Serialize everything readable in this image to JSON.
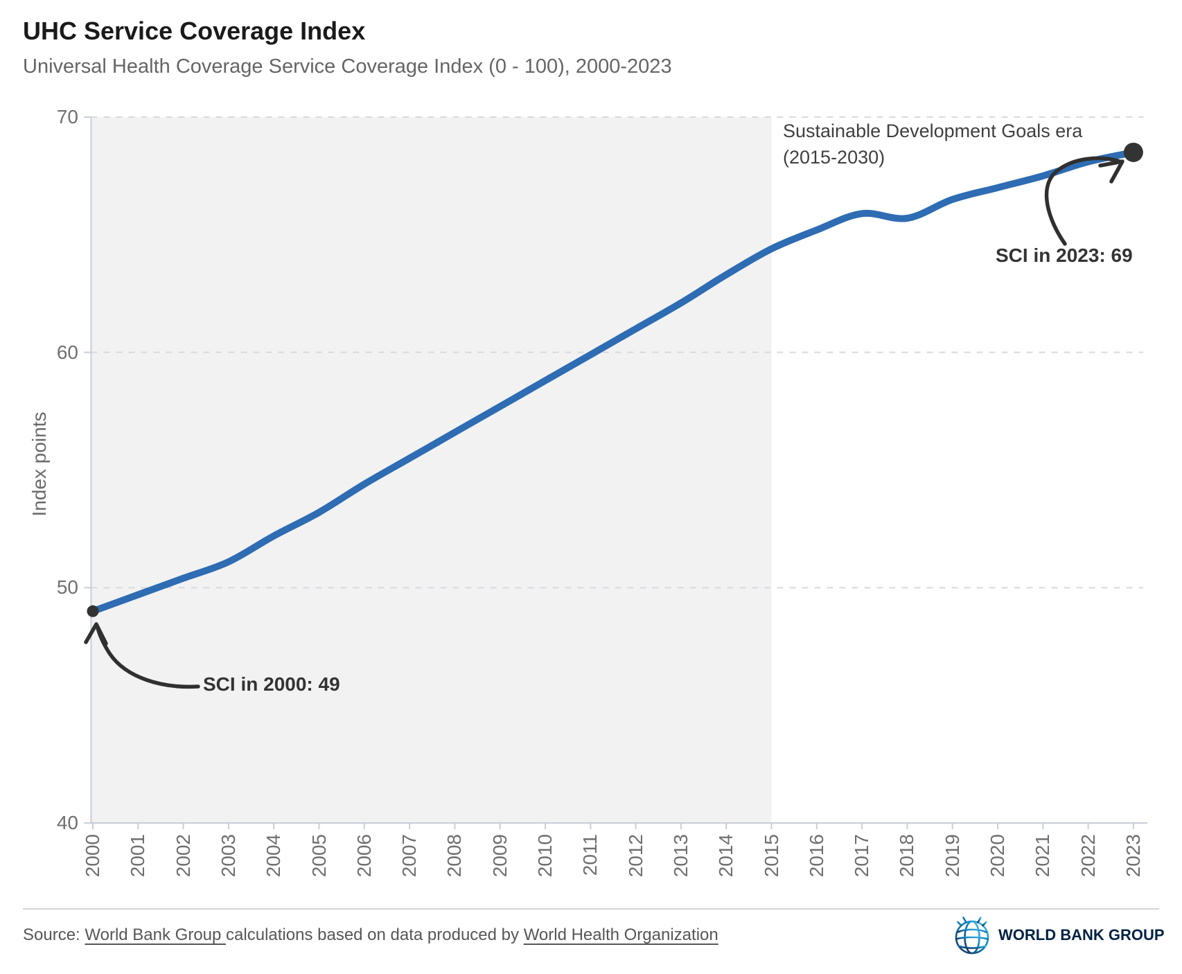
{
  "header": {
    "title": "UHC Service Coverage Index",
    "subtitle": "Universal Health Coverage Service Coverage Index (0 - 100), 2000-2023"
  },
  "chart_data": {
    "type": "line",
    "title": "UHC Service Coverage Index",
    "subtitle": "Universal Health Coverage Service Coverage Index (0 - 100), 2000-2023",
    "xlabel": "",
    "ylabel": "Index points",
    "ylim": [
      40,
      70
    ],
    "yticks": [
      40,
      50,
      60,
      70
    ],
    "grid": "horizontal-dashed",
    "legend_position": "none",
    "x": [
      2000,
      2001,
      2002,
      2003,
      2004,
      2005,
      2006,
      2007,
      2008,
      2009,
      2010,
      2011,
      2012,
      2013,
      2014,
      2015,
      2016,
      2017,
      2018,
      2019,
      2020,
      2021,
      2022,
      2023
    ],
    "series": [
      {
        "name": "UHC Service Coverage Index",
        "color": "#2e6cb3",
        "values": [
          49.0,
          49.7,
          50.4,
          51.1,
          52.2,
          53.2,
          54.4,
          55.5,
          56.6,
          57.7,
          58.8,
          59.9,
          61.0,
          62.1,
          63.3,
          64.4,
          65.2,
          65.9,
          65.7,
          66.5,
          67.0,
          67.5,
          68.1,
          68.5
        ]
      }
    ],
    "shaded_region": {
      "from": 2000,
      "to": 2015
    },
    "annotations": {
      "sdg_era": {
        "line1": "Sustainable Development Goals era",
        "line2": "(2015-2030)"
      },
      "start": {
        "text": "SCI in 2000: 49",
        "year": 2000,
        "value": 49
      },
      "end": {
        "text": "SCI in 2023: 69",
        "year": 2023,
        "value": 69
      }
    }
  },
  "colors": {
    "line": "#2e6cb3",
    "shade": "#f2f2f2",
    "marker": "#333333",
    "arrow": "#303030",
    "grid": "#d8d9e0",
    "axis": "#c8cdd8"
  },
  "footer": {
    "source_prefix": "Source: ",
    "source_link_1": "World Bank Group ",
    "source_middle": "calculations based on data produced by ",
    "source_link_2": "World Health Organization",
    "logo_text": "WORLD BANK GROUP"
  }
}
